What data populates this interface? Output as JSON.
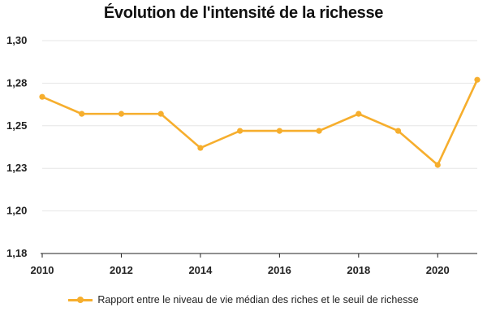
{
  "chart_data": {
    "type": "line",
    "title": "Évolution de l'intensité de la richesse",
    "xlabel": "",
    "ylabel": "",
    "x": [
      2010,
      2011,
      2012,
      2013,
      2014,
      2015,
      2016,
      2017,
      2018,
      2019,
      2020,
      2021
    ],
    "series": [
      {
        "name": "Rapport entre le niveau de vie médian des riches et le seuil de richesse",
        "color": "#f6ae2d",
        "values": [
          1.272,
          1.262,
          1.262,
          1.262,
          1.242,
          1.252,
          1.252,
          1.252,
          1.262,
          1.252,
          1.232,
          1.282
        ]
      }
    ],
    "xlim": [
      2010,
      2021
    ],
    "ylim": [
      1.18,
      1.3
    ],
    "x_ticks": [
      2010,
      2012,
      2014,
      2016,
      2018,
      2020
    ],
    "x_tick_labels": [
      "2010",
      "2012",
      "2014",
      "2016",
      "2018",
      "2020"
    ],
    "y_ticks": [
      1.18,
      1.205,
      1.23,
      1.255,
      1.28,
      1.305
    ],
    "y_tick_labels": [
      "1,18",
      "1,20",
      "1,23",
      "1,25",
      "1,28",
      "1,30"
    ],
    "grid": true,
    "legend_position": "bottom"
  }
}
